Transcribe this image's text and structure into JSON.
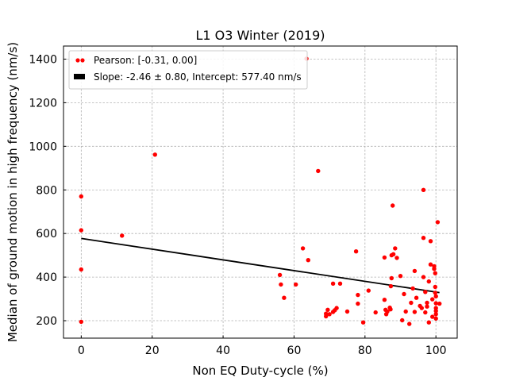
{
  "chart_data": {
    "type": "scatter",
    "title": "L1 O3 Winter (2019)",
    "xlabel": "Non EQ Duty-cycle (%)",
    "ylabel": "Median of ground motion in high frequency (nm/s)",
    "xlim": [
      -5,
      106
    ],
    "ylim": [
      120,
      1460
    ],
    "xticks": [
      0,
      20,
      40,
      60,
      80,
      100
    ],
    "yticks": [
      200,
      400,
      600,
      800,
      1000,
      1200,
      1400
    ],
    "grid": true,
    "legend_position": "top-left",
    "series": [
      {
        "name": "Pearson: [-0.31, 0.00]",
        "kind": "scatter",
        "color": "#ff0000",
        "points": [
          [
            0,
            770
          ],
          [
            0,
            615
          ],
          [
            0,
            435
          ],
          [
            0,
            195
          ],
          [
            11.5,
            590
          ],
          [
            20.8,
            962
          ],
          [
            63.5,
            1402
          ],
          [
            62.5,
            532
          ],
          [
            64,
            478
          ],
          [
            66.8,
            887
          ],
          [
            60.5,
            366
          ],
          [
            56,
            410
          ],
          [
            56.3,
            366
          ],
          [
            57.2,
            305
          ],
          [
            69,
            232
          ],
          [
            69,
            220
          ],
          [
            69.5,
            250
          ],
          [
            70,
            230
          ],
          [
            71,
            240
          ],
          [
            71,
            370
          ],
          [
            71.5,
            248
          ],
          [
            72,
            258
          ],
          [
            73,
            370
          ],
          [
            75,
            242
          ],
          [
            77.5,
            518
          ],
          [
            78,
            318
          ],
          [
            78,
            278
          ],
          [
            79.5,
            192
          ],
          [
            81,
            338
          ],
          [
            83,
            238
          ],
          [
            85.5,
            490
          ],
          [
            85.5,
            296
          ],
          [
            85.8,
            250
          ],
          [
            86,
            230
          ],
          [
            86.3,
            242
          ],
          [
            87,
            260
          ],
          [
            87.2,
            252
          ],
          [
            87.3,
            358
          ],
          [
            87.5,
            500
          ],
          [
            87.5,
            395
          ],
          [
            87.8,
            728
          ],
          [
            88,
            505
          ],
          [
            88.5,
            532
          ],
          [
            89,
            488
          ],
          [
            90,
            405
          ],
          [
            90.5,
            202
          ],
          [
            91,
            322
          ],
          [
            91.5,
            242
          ],
          [
            92.5,
            185
          ],
          [
            93,
            282
          ],
          [
            93.5,
            348
          ],
          [
            94,
            428
          ],
          [
            94,
            240
          ],
          [
            94.5,
            305
          ],
          [
            95.5,
            268
          ],
          [
            96,
            258
          ],
          [
            96.5,
            800
          ],
          [
            96.5,
            580
          ],
          [
            96.5,
            400
          ],
          [
            97,
            332
          ],
          [
            97,
            238
          ],
          [
            97.5,
            265
          ],
          [
            97.5,
            282
          ],
          [
            98,
            380
          ],
          [
            98,
            192
          ],
          [
            98.5,
            565
          ],
          [
            98.5,
            458
          ],
          [
            99,
            298
          ],
          [
            99,
            218
          ],
          [
            99.5,
            450
          ],
          [
            99.5,
            438
          ],
          [
            99.8,
            418
          ],
          [
            99.8,
            355
          ],
          [
            99.8,
            328
          ],
          [
            100,
            312
          ],
          [
            100,
            280
          ],
          [
            100,
            258
          ],
          [
            100,
            245
          ],
          [
            100,
            230
          ],
          [
            100,
            210
          ],
          [
            100.5,
            652
          ],
          [
            101,
            278
          ]
        ]
      },
      {
        "name": "Slope: -2.46 ± 0.80, Intercept: 577.40 nm/s",
        "kind": "line",
        "color": "#000000",
        "slope": -2.46,
        "intercept": 577.4,
        "x_range": [
          0,
          101
        ]
      }
    ]
  }
}
